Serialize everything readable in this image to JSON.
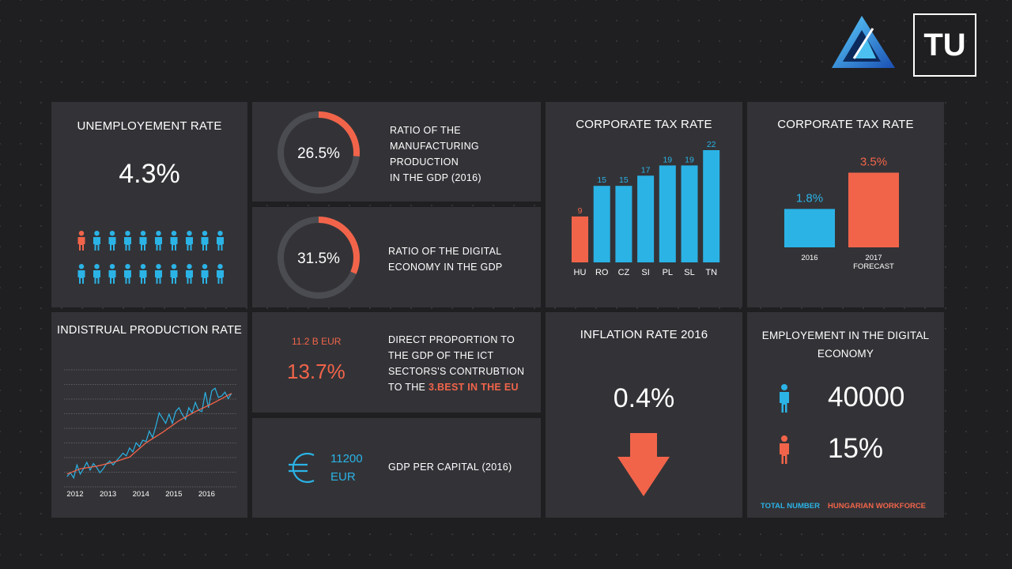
{
  "brand": {
    "tu_label": "TU"
  },
  "colors": {
    "blue": "#2bb3e6",
    "red": "#f2644a",
    "card": "#333337",
    "ring_track": "#4b4c51"
  },
  "unemployment": {
    "title": "UNEMPLOYEMENT RATE",
    "value": "4.3%",
    "people_total": 20,
    "people_highlighted": 1
  },
  "manufacturing": {
    "value": "26.5%",
    "fraction": 0.265,
    "lines": [
      "RATIO OF THE",
      "MANUFACTURING",
      "PRODUCTION",
      "IN THE GDP (2016)"
    ]
  },
  "digital_ratio": {
    "value": "31.5%",
    "fraction": 0.315,
    "lines": [
      "RATIO OF THE DIGITAL",
      "ECONOMY IN THE GDP"
    ]
  },
  "ict": {
    "small_value": "11.2 B EUR",
    "value": "13.7%",
    "lines": [
      "DIRECT PROPORTION TO",
      "THE GDP OF THE ICT",
      "SECTORS'S CONTRUBTION"
    ],
    "last_prefix": "TO THE ",
    "last_highlight": "3.BEST IN THE EU"
  },
  "gdp_per_capita": {
    "currency_icon": "euro-icon",
    "value": "11200",
    "unit": "EUR",
    "label": "GDP PER CAPITAL (2016)"
  },
  "corporate_tax": {
    "title": "CORPORATE TAX RATE"
  },
  "corporate_tax_2": {
    "title": "CORPORATE TAX RATE"
  },
  "inflation": {
    "title": "INFLATION RATE 2016",
    "value": "0.4%",
    "arrow_icon": "arrow-down-icon"
  },
  "industrial": {
    "title": "INDISTRUAL PRODUCTION RATE"
  },
  "employment": {
    "title_line1": "EMPLOYEMENT IN THE DIGITAL",
    "title_line2": "ECONOMY",
    "total": "40000",
    "share": "15%",
    "legend_total": "TOTAL NUMBER",
    "legend_hu": "HUNGARIAN WORKFORCE"
  },
  "chart_data": [
    {
      "type": "bar",
      "title": "CORPORATE TAX RATE",
      "categories": [
        "HU",
        "RO",
        "CZ",
        "SI",
        "PL",
        "SL",
        "TN"
      ],
      "values": [
        9,
        15,
        15,
        17,
        19,
        19,
        22
      ],
      "data_labels": [
        "9",
        "15",
        "15",
        "17",
        "19",
        "19",
        "22"
      ],
      "highlight": "HU",
      "ylim": [
        0,
        22
      ]
    },
    {
      "type": "bar",
      "title": "CORPORATE TAX RATE",
      "categories": [
        "2016",
        "2017"
      ],
      "category_sublabels": [
        "",
        "FORECAST"
      ],
      "values": [
        1.8,
        3.5
      ],
      "data_labels": [
        "1.8%",
        "3.5%"
      ],
      "ylim": [
        0,
        4
      ]
    },
    {
      "type": "line",
      "title": "INDISTRUAL PRODUCTION RATE",
      "x_tick_labels": [
        "2012",
        "2013",
        "2014",
        "2015",
        "2016"
      ],
      "xlim": [
        2012,
        2017
      ],
      "ylim": [
        0,
        9
      ],
      "grid": true,
      "series": [
        {
          "x": [
            2011.9,
            2012.0,
            2012.1,
            2012.2,
            2012.3,
            2012.4,
            2012.5,
            2012.6,
            2012.7,
            2012.8,
            2012.9,
            2013.0,
            2013.1,
            2013.2,
            2013.3,
            2013.4,
            2013.5,
            2013.6,
            2013.7,
            2013.8,
            2013.9,
            2014.0,
            2014.1,
            2014.2,
            2014.3,
            2014.4,
            2014.5,
            2014.6,
            2014.7,
            2014.8,
            2014.9,
            2015.0,
            2015.1,
            2015.2,
            2015.3,
            2015.4,
            2015.5,
            2015.6,
            2015.7,
            2015.8,
            2015.9,
            2016.0,
            2016.1,
            2016.2,
            2016.3,
            2016.4,
            2016.5,
            2016.6,
            2016.7,
            2016.8,
            2016.9
          ],
          "y": [
            0.3,
            0.6,
            0.2,
            1.2,
            0.5,
            0.9,
            1.4,
            0.8,
            1.3,
            1.0,
            0.6,
            0.9,
            1.3,
            1.5,
            1.2,
            1.5,
            1.8,
            2.1,
            1.9,
            2.5,
            2.2,
            2.9,
            2.6,
            3.1,
            3.0,
            3.8,
            3.3,
            4.2,
            5.2,
            4.8,
            4.4,
            5.1,
            4.4,
            5.3,
            5.6,
            5.1,
            4.7,
            5.6,
            5.2,
            6.0,
            5.4,
            5.3,
            6.8,
            5.6,
            6.9,
            7.1,
            6.4,
            6.5,
            6.8,
            6.3,
            6.7
          ]
        },
        {
          "x": [
            2011.9,
            2012.3,
            2012.8,
            2013.3,
            2013.8,
            2014.3,
            2014.8,
            2015.3,
            2015.8,
            2016.3,
            2016.9
          ],
          "y": [
            0.5,
            0.9,
            1.1,
            1.4,
            1.8,
            2.9,
            3.7,
            4.6,
            5.3,
            5.9,
            6.7
          ]
        }
      ]
    }
  ]
}
